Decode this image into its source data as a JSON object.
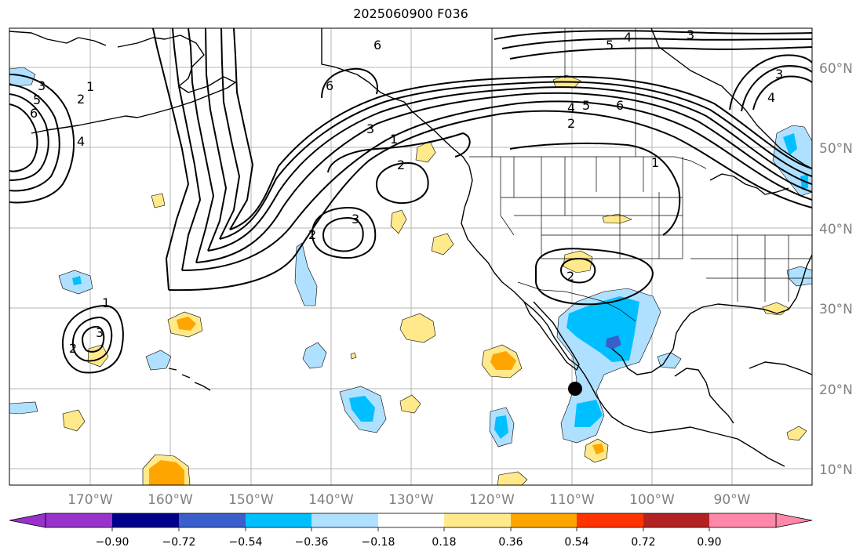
{
  "title": "2025060900 F036",
  "latitude_labels": [
    "60°N",
    "50°N",
    "40°N",
    "30°N",
    "20°N",
    "10°N"
  ],
  "longitude_labels": [
    "170°W",
    "160°W",
    "150°W",
    "140°W",
    "130°W",
    "120°W",
    "110°W",
    "100°W",
    "90°W"
  ],
  "colorbar": {
    "ticks": [
      "−0.90",
      "−0.72",
      "−0.54",
      "−0.36",
      "−0.18",
      "0.18",
      "0.36",
      "0.54",
      "0.72",
      "0.90"
    ],
    "colors": [
      "#9932cc",
      "#00008b",
      "#3a5fcd",
      "#00bfff",
      "#b0e0ff",
      "#ffffff",
      "#ffe98a",
      "#ffa500",
      "#ff3300",
      "#b22222",
      "#ff88aa"
    ]
  },
  "contour_labels": [
    "1",
    "2",
    "3",
    "4",
    "5",
    "6"
  ],
  "colors": {
    "light_blue": "#b0e0ff",
    "deep_sky_blue": "#00bfff",
    "royal_blue": "#3a5fcd",
    "light_yellow": "#ffe98a",
    "orange": "#ffa500"
  }
}
